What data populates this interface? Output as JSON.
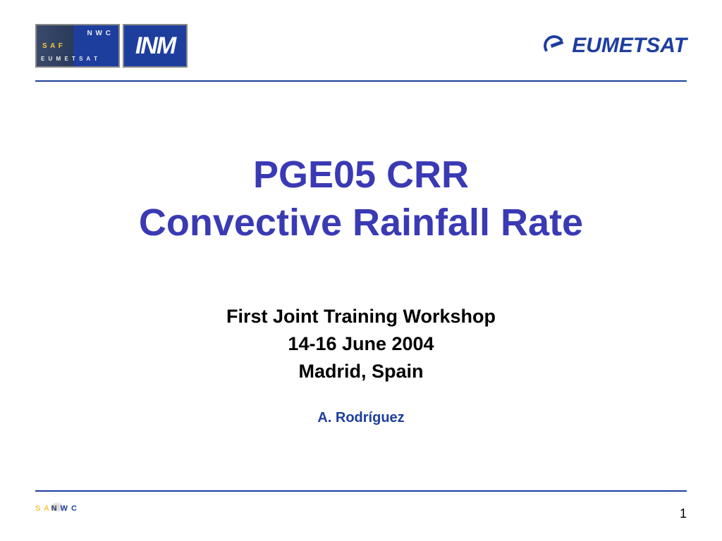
{
  "header": {
    "left_logo": {
      "safnwc": {
        "saf": "S A F",
        "nwc": "N W C",
        "eumetsat": "E U M E T S A T"
      },
      "inm": "INM"
    },
    "right_logo": {
      "text": "EUMETSAT"
    }
  },
  "title": {
    "line1": "PGE05 CRR",
    "line2": "Convective Rainfall Rate"
  },
  "subtitle": {
    "line1": "First Joint Training Workshop",
    "line2": "14-16 June 2004",
    "line3": "Madrid, Spain"
  },
  "author": "A. Rodríguez",
  "footer": {
    "logo": {
      "saf": "S A F",
      "nwc": "N W C"
    },
    "page_number": "1"
  },
  "colors": {
    "accent_blue": "#1e3e9e",
    "title_blue": "#3a3ab5",
    "gold": "#f5c842",
    "text_black": "#000000",
    "background": "#ffffff"
  }
}
